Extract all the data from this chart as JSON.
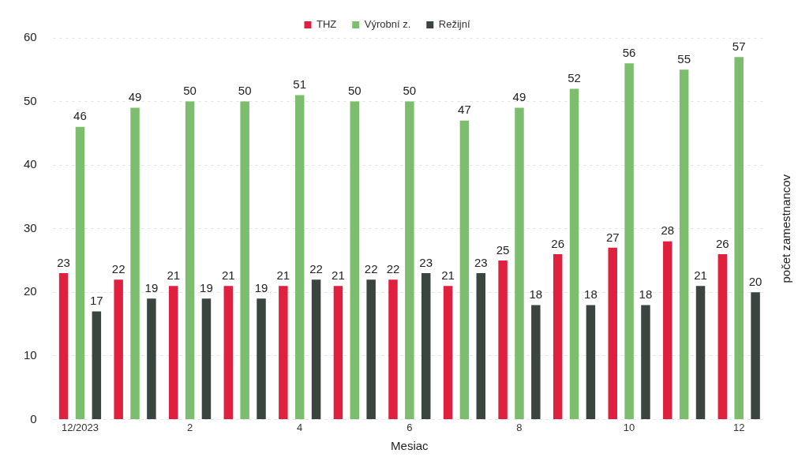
{
  "chart_data": {
    "type": "bar",
    "xlabel": "Mesiac",
    "ylabel": "počet zamestnancov",
    "categories": [
      "12/2023",
      null,
      "2",
      null,
      "4",
      null,
      "6",
      null,
      "8",
      null,
      "10",
      null,
      "12"
    ],
    "series": [
      {
        "name": "THZ",
        "color": "#e0203f",
        "values": [
          23,
          22,
          21,
          21,
          21,
          21,
          22,
          21,
          25,
          26,
          27,
          28,
          26
        ]
      },
      {
        "name": "Výrobní z.",
        "color": "#7cbd6e",
        "values": [
          46,
          49,
          50,
          50,
          51,
          50,
          50,
          47,
          49,
          52,
          56,
          55,
          57
        ]
      },
      {
        "name": "Režijní",
        "color": "#3a4540",
        "values": [
          17,
          19,
          19,
          19,
          22,
          22,
          23,
          23,
          18,
          18,
          18,
          21,
          20
        ]
      }
    ],
    "ylim": [
      0,
      60
    ],
    "yticks": [
      0,
      10,
      20,
      30,
      40,
      50,
      60
    ],
    "grid": "y",
    "legend": "top",
    "data_labels": true
  }
}
